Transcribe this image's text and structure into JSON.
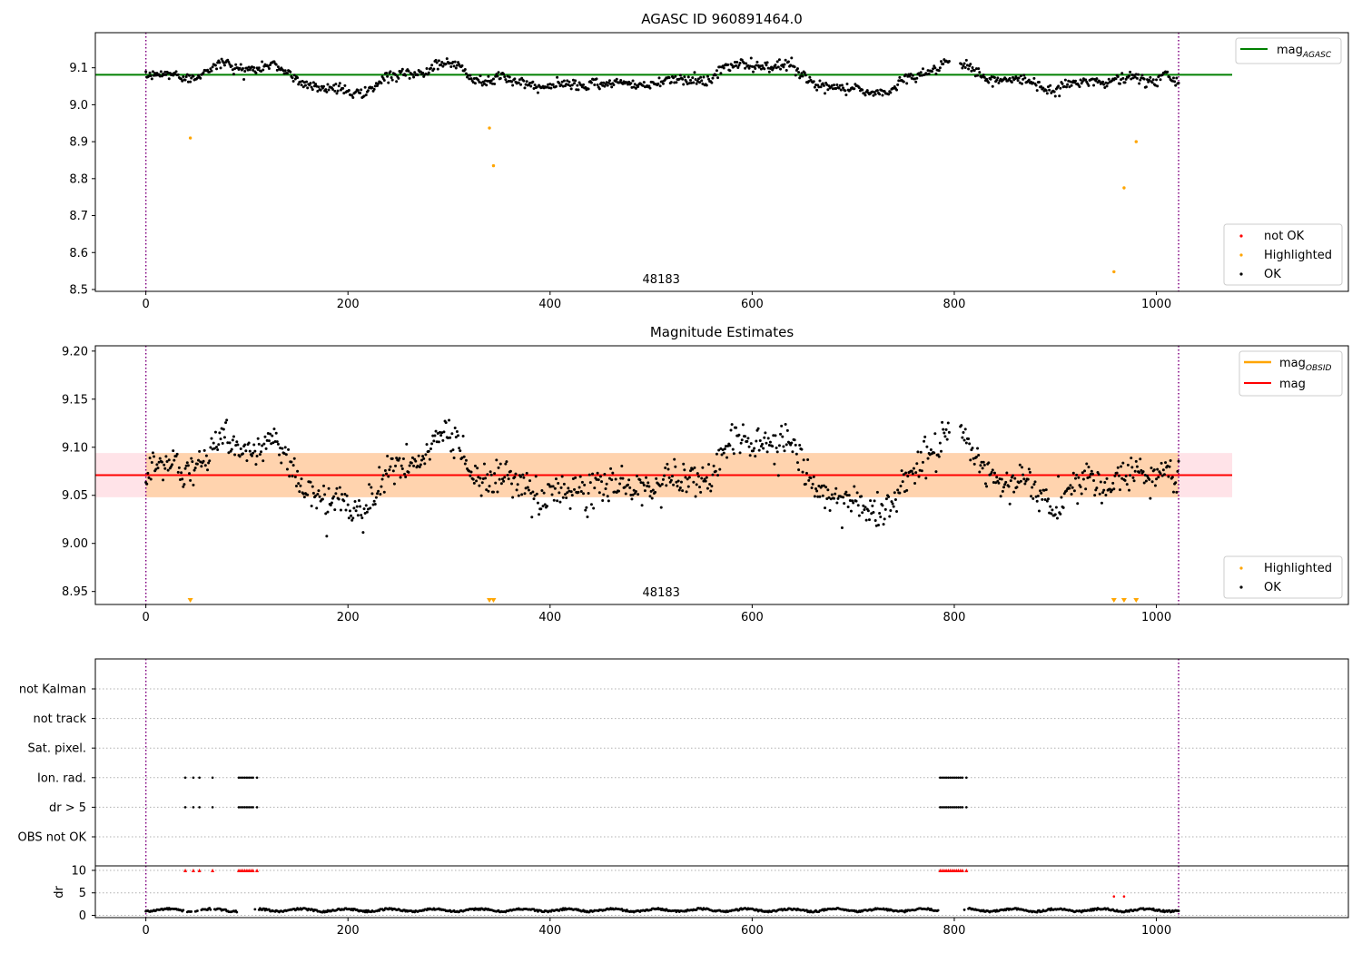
{
  "chart_data": [
    {
      "type": "scatter",
      "title": "AGASC ID 960891464.0",
      "xlim": [
        -50,
        1190
      ],
      "ylim": [
        8.495,
        9.195
      ],
      "xticks": [
        0,
        200,
        400,
        600,
        800,
        1000
      ],
      "yticks": [
        8.5,
        8.6,
        8.7,
        8.8,
        8.9,
        9.0,
        9.1
      ],
      "ytick_labels": [
        "8.5",
        "8.6",
        "8.7",
        "8.8",
        "8.9",
        "9.0",
        "9.1"
      ],
      "obsid_label": "48183",
      "obsid_label_x": 510,
      "vlines": [
        0,
        1022
      ],
      "vline_color": "#800080",
      "hline": {
        "name": "mag_AGASC",
        "y": 9.081,
        "x_range": [
          -50,
          1075
        ],
        "color": "#008000"
      },
      "legend_lines": [
        {
          "label": "mag",
          "subscript": "AGASC",
          "color": "#008000"
        }
      ],
      "legend_points": [
        {
          "label": "not OK",
          "color": "#ff0000"
        },
        {
          "label": "Highlighted",
          "color": "#ffa500"
        },
        {
          "label": "OK",
          "color": "#000000"
        }
      ],
      "highlighted_points": [
        [
          44,
          8.91
        ],
        [
          340,
          8.937
        ],
        [
          344,
          8.835
        ],
        [
          958,
          8.548
        ],
        [
          968,
          8.775
        ],
        [
          980,
          8.9
        ]
      ],
      "ok_series": {
        "n_points": 1023,
        "x_range": [
          0,
          1022
        ],
        "profile": [
          [
            0,
            9.07
          ],
          [
            20,
            9.08
          ],
          [
            50,
            9.08
          ],
          [
            80,
            9.11
          ],
          [
            95,
            9.1
          ],
          [
            130,
            9.1
          ],
          [
            145,
            9.08
          ],
          [
            170,
            9.045
          ],
          [
            215,
            9.035
          ],
          [
            245,
            9.075
          ],
          [
            270,
            9.09
          ],
          [
            290,
            9.11
          ],
          [
            315,
            9.1
          ],
          [
            325,
            9.07
          ],
          [
            380,
            9.06
          ],
          [
            395,
            9.045
          ],
          [
            440,
            9.06
          ],
          [
            475,
            9.055
          ],
          [
            500,
            9.06
          ],
          [
            520,
            9.065
          ],
          [
            560,
            9.07
          ],
          [
            570,
            9.095
          ],
          [
            600,
            9.112
          ],
          [
            640,
            9.1
          ],
          [
            660,
            9.065
          ],
          [
            680,
            9.04
          ],
          [
            705,
            9.04
          ],
          [
            735,
            9.035
          ],
          [
            765,
            9.085
          ],
          [
            790,
            9.11
          ],
          [
            805,
            9.11
          ],
          [
            830,
            9.08
          ],
          [
            845,
            9.065
          ],
          [
            880,
            9.06
          ],
          [
            900,
            9.04
          ],
          [
            930,
            9.065
          ],
          [
            1000,
            9.07
          ],
          [
            1010,
            9.085
          ],
          [
            1022,
            9.065
          ]
        ],
        "gaps": [
          [
            795,
            806
          ]
        ],
        "scatter": 0.007
      }
    },
    {
      "type": "scatter",
      "title": "Magnitude Estimates",
      "xlim": [
        -50,
        1190
      ],
      "ylim": [
        8.9365,
        9.2055
      ],
      "xticks": [
        0,
        200,
        400,
        600,
        800,
        1000
      ],
      "yticks": [
        8.95,
        9.0,
        9.05,
        9.1,
        9.15,
        9.2
      ],
      "ytick_labels": [
        "8.95",
        "9.00",
        "9.05",
        "9.10",
        "9.15",
        "9.20"
      ],
      "obsid_label": "48183",
      "obsid_label_x": 510,
      "vlines": [
        0,
        1022
      ],
      "vline_color": "#800080",
      "mag_line": {
        "name": "mag",
        "y": 9.071,
        "x_range": [
          -50,
          1075
        ],
        "color": "#ff0000"
      },
      "mag_band": {
        "y_range": [
          9.048,
          9.094
        ],
        "x_range": [
          -50,
          1075
        ],
        "color": "#ffc0cb"
      },
      "obsid_band": {
        "y_range": [
          9.048,
          9.094
        ],
        "x_range": [
          0,
          1022
        ],
        "color": "#ffa500"
      },
      "legend_lines": [
        {
          "label": "mag",
          "subscript": "OBSID",
          "color": "#ffa500"
        },
        {
          "label": "mag",
          "subscript": "",
          "color": "#ff0000"
        }
      ],
      "legend_points": [
        {
          "label": "Highlighted",
          "color": "#ffa500"
        },
        {
          "label": "OK",
          "color": "#000000"
        }
      ],
      "lower_limit_markers_x": [
        44,
        340,
        344,
        958,
        968,
        980
      ],
      "ok_series_ref": "same profile as the AGASC panel, wider scatter",
      "scatter": 0.009
    },
    {
      "type": "scatter",
      "title": "",
      "xlim": [
        -50,
        1190
      ],
      "xticks": [
        0,
        200,
        400,
        600,
        800,
        1000
      ],
      "vlines": [
        0,
        1022
      ],
      "vline_color": "#800080",
      "flag_rows": [
        "not Kalman",
        "not track",
        "Sat. pixel.",
        "Ion. rad.",
        "dr > 5",
        "OBS not OK"
      ],
      "flagged_x": [
        39,
        47,
        53,
        66,
        92,
        94,
        96,
        98,
        100,
        102,
        104,
        106,
        110,
        786,
        788,
        790,
        792,
        794,
        796,
        798,
        800,
        802,
        804,
        806,
        808,
        812
      ],
      "flag_rows_marked": [
        "Ion. rad.",
        "dr > 5"
      ],
      "dr_ylabel": "dr",
      "dr_ylim": [
        -0.5,
        11
      ],
      "dr_yticks": [
        0,
        5,
        10
      ],
      "dr_clip_value": 10,
      "dr_clip_color": "#ff0000",
      "dr_highlighted": [
        [
          958,
          4.2
        ],
        [
          968,
          4.2
        ]
      ],
      "dr_typical_range": [
        0.2,
        1.8
      ]
    }
  ]
}
